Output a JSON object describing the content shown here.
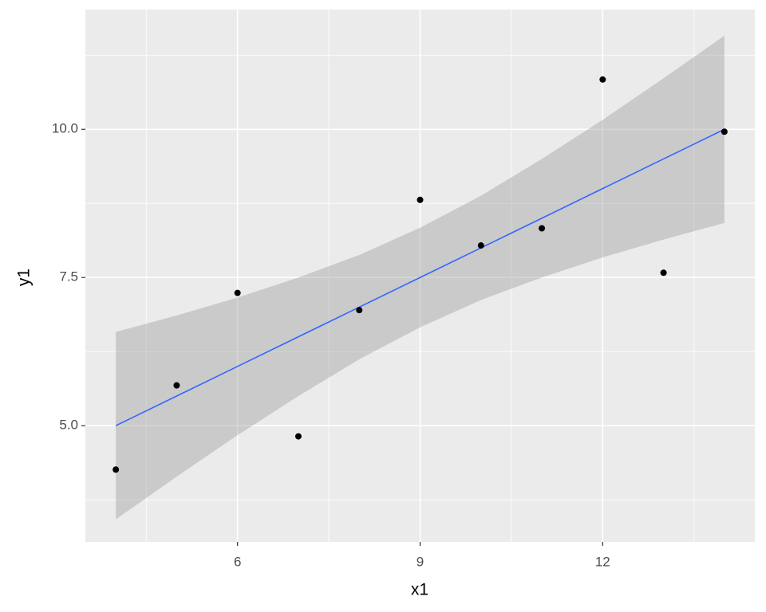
{
  "chart_data": {
    "type": "scatter",
    "x_label": "x1",
    "y_label": "y1",
    "x": [
      10,
      8,
      13,
      9,
      11,
      14,
      6,
      4,
      12,
      7,
      5
    ],
    "y": [
      8.04,
      6.95,
      7.58,
      8.81,
      8.33,
      9.96,
      7.24,
      4.26,
      10.84,
      4.82,
      5.68
    ],
    "point_color": "#000000",
    "smooth": {
      "x": [
        4,
        5,
        6,
        7,
        8,
        9,
        10,
        11,
        12,
        13,
        14
      ],
      "fit": [
        5,
        5.5,
        6,
        6.5,
        7,
        7.5,
        8,
        8.5,
        9,
        9.5,
        10
      ],
      "lower": [
        3.42,
        4.14,
        4.84,
        5.5,
        6.12,
        6.66,
        7.12,
        7.5,
        7.84,
        8.14,
        8.42
      ],
      "upper": [
        6.58,
        6.86,
        7.16,
        7.5,
        7.88,
        8.34,
        8.88,
        9.5,
        10.16,
        10.86,
        11.58
      ],
      "color": "#3366ff",
      "band_color": "#999999"
    },
    "xlim": [
      3.5,
      14.5
    ],
    "ylim": [
      3.04,
      12.02
    ],
    "xticks": [
      6,
      9,
      12
    ],
    "yticks": [
      {
        "value": 5,
        "label": "5.0"
      },
      {
        "value": 7.5,
        "label": "7.5"
      },
      {
        "value": 10,
        "label": "10.0"
      }
    ],
    "x_minor": [
      4.5,
      7.5,
      10.5,
      13.5
    ],
    "y_minor": [
      3.75,
      6.25,
      8.75,
      11.25
    ],
    "grid": true,
    "panel_color": "#ebebeb"
  }
}
